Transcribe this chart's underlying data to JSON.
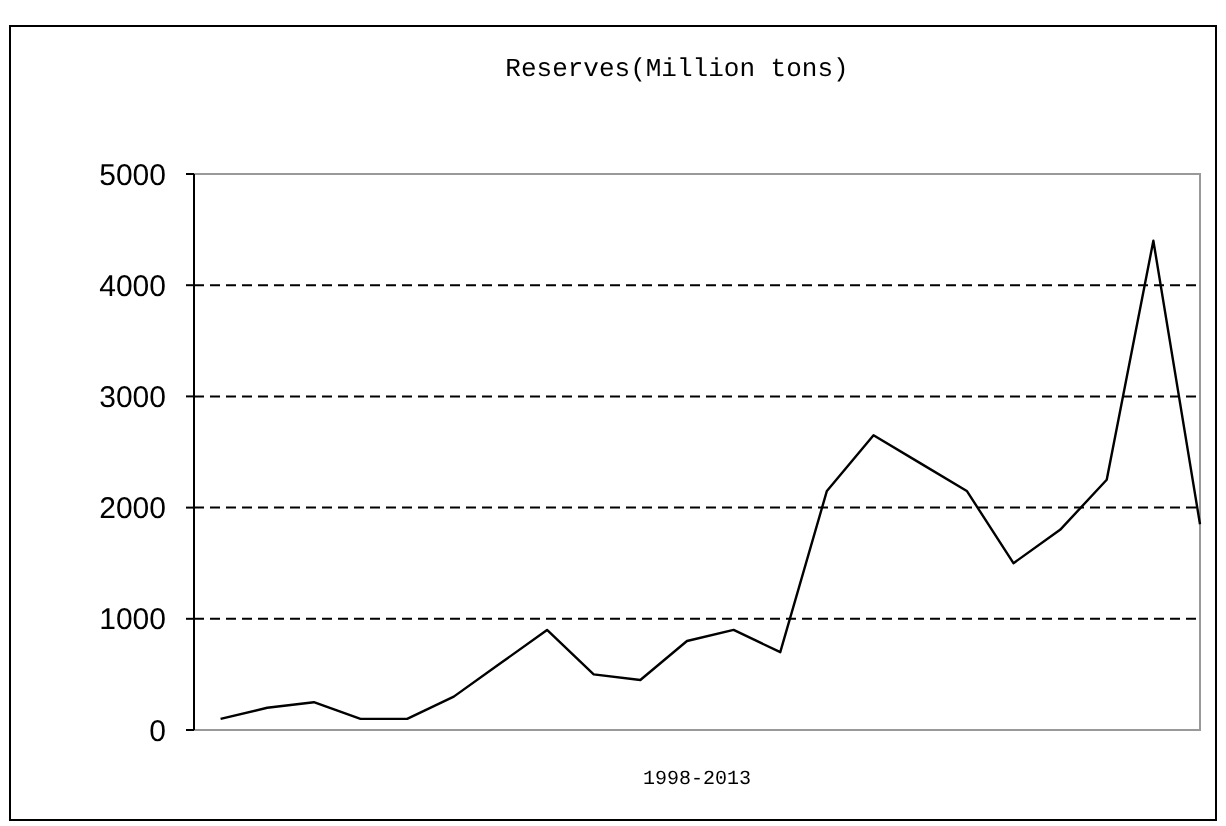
{
  "chart_data": {
    "type": "line",
    "title": "Reserves(Million tons)",
    "xlabel": "1998-2013",
    "categories": [
      null,
      null,
      null,
      null,
      null,
      null,
      null,
      null,
      null,
      null,
      null,
      null,
      null,
      null,
      null,
      null,
      null,
      null,
      null,
      null,
      null,
      null
    ],
    "series": [
      {
        "color": "#000000",
        "values": [
          100,
          200,
          250,
          100,
          100,
          300,
          600,
          900,
          500,
          450,
          800,
          900,
          700,
          2150,
          2650,
          2400,
          2150,
          1500,
          1800,
          2250,
          4400,
          1850
        ]
      }
    ],
    "ylim": [
      0,
      5000
    ],
    "yticks": [
      0,
      1000,
      2000,
      3000,
      4000,
      5000
    ],
    "grid": "y",
    "marker": "none",
    "line_style": "solid"
  }
}
